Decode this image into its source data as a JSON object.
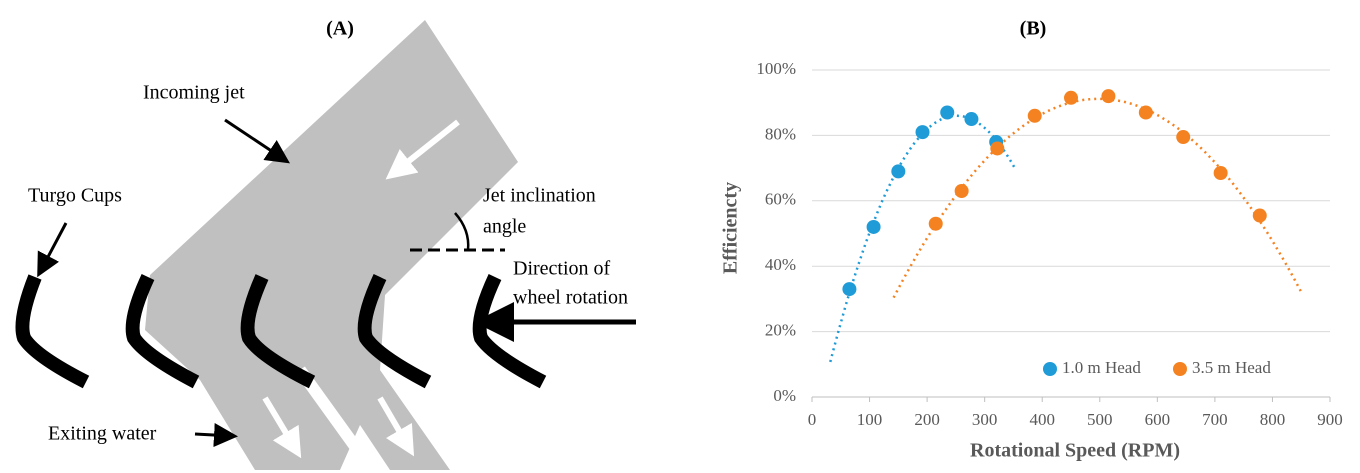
{
  "diagram": {
    "title": "(A)",
    "incoming_jet": "Incoming jet",
    "turgo_cups": "Turgo Cups",
    "jet_angle": [
      "Jet inclination",
      "angle"
    ],
    "rotation": [
      "Direction of",
      "wheel rotation"
    ],
    "exiting_water": "Exiting water"
  },
  "chart_data": {
    "type": "scatter",
    "title": "(B)",
    "x_label": "Rotational Speed (RPM)",
    "y_label": "Efficiencty",
    "xlim": [
      0,
      900
    ],
    "xticks": [
      0,
      100,
      200,
      300,
      400,
      500,
      600,
      700,
      800,
      900
    ],
    "ylim": [
      0,
      100
    ],
    "yticks": [
      {
        "value": 0,
        "label": "0%"
      },
      {
        "value": 20,
        "label": "20%"
      },
      {
        "value": 40,
        "label": "40%"
      },
      {
        "value": 60,
        "label": "60%"
      },
      {
        "value": 80,
        "label": "80%"
      },
      {
        "value": 100,
        "label": "100%"
      }
    ],
    "grid": true,
    "trendline": true,
    "legend": "lower right",
    "series": [
      {
        "name": "1.0 m Head",
        "color": "#1f9bd7",
        "x": [
          65,
          107,
          150,
          192,
          235,
          277,
          320
        ],
        "values": [
          33,
          52,
          69,
          81,
          87,
          85,
          78
        ]
      },
      {
        "name": "3.5 m Head",
        "color": "#f58220",
        "x": [
          215,
          260,
          322,
          387,
          450,
          515,
          580,
          645,
          710,
          778
        ],
        "values": [
          53,
          63,
          76,
          86,
          91.5,
          92,
          87,
          79.5,
          68.5,
          55.5
        ]
      }
    ]
  }
}
